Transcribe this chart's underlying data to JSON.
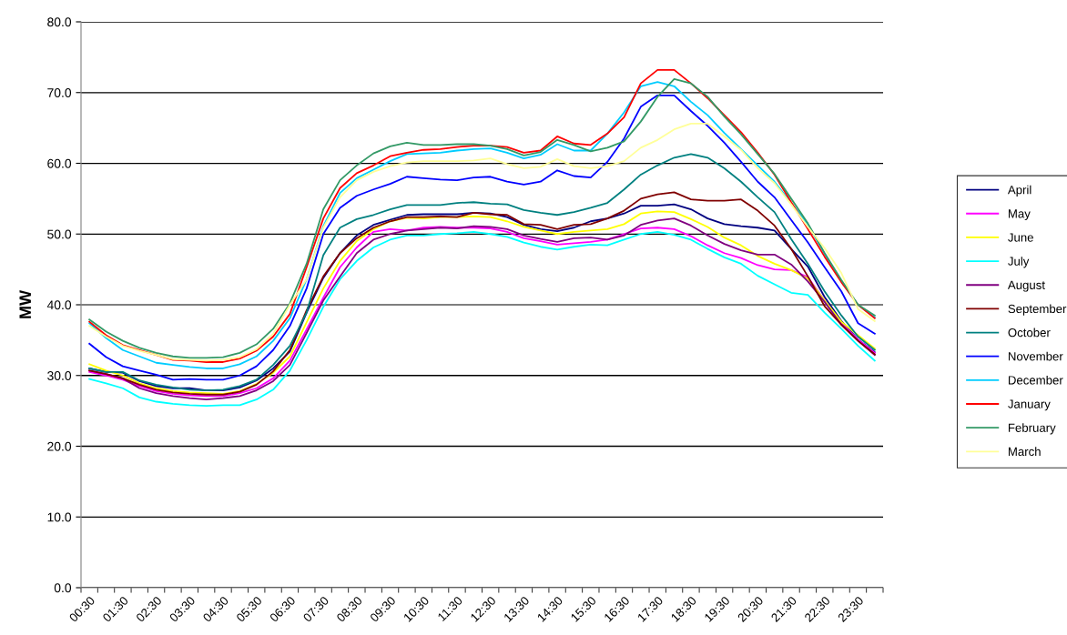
{
  "chart_data": {
    "type": "line",
    "ylabel": "MW",
    "categories": [
      "00:30",
      null,
      "01:30",
      null,
      "02:30",
      null,
      "03:30",
      null,
      "04:30",
      null,
      "05:30",
      null,
      "06:30",
      null,
      "07:30",
      null,
      "08:30",
      null,
      "09:30",
      null,
      "10:30",
      null,
      "11:30",
      null,
      "12:30",
      null,
      "13:30",
      null,
      "14:30",
      null,
      "15:30",
      null,
      "16:30",
      null,
      "17:30",
      null,
      "18:30",
      null,
      "19:30",
      null,
      "20:30",
      null,
      "21:30",
      null,
      "22:30",
      null,
      "23:30",
      null
    ],
    "ylim": [
      0,
      80
    ],
    "yticks": [
      {
        "value": 0,
        "label": "0.0"
      },
      {
        "value": 10,
        "label": "10.0"
      },
      {
        "value": 20,
        "label": "20.0"
      },
      {
        "value": 30,
        "label": "30.0"
      },
      {
        "value": 40,
        "label": "40.0"
      },
      {
        "value": 50,
        "label": "50.0"
      },
      {
        "value": 60,
        "label": "60.0"
      },
      {
        "value": 70,
        "label": "70.0"
      },
      {
        "value": 80,
        "label": "80.0"
      }
    ],
    "grid": "y",
    "legend": "right",
    "marker": "none",
    "line_style": "solid",
    "series": [
      {
        "name": "April",
        "color": "#000080",
        "values": [
          31,
          30.5,
          30.4,
          29.2,
          28.5,
          28.2,
          28.2,
          27.9,
          27.9,
          28.3,
          29.3,
          31,
          33.4,
          38.9,
          43.8,
          47.3,
          49.8,
          51.3,
          52,
          52.7,
          52.8,
          52.8,
          52.8,
          53,
          52.9,
          52.4,
          51.3,
          50.7,
          50.4,
          50.9,
          51.8,
          52.2,
          52.9,
          54,
          54,
          54.2,
          53.5,
          52.2,
          51.4,
          51.1,
          50.9,
          50.5,
          47.9,
          45.4,
          41.1,
          37.7,
          35.1,
          33.3
        ]
      },
      {
        "name": "May",
        "color": "#ff00ff",
        "values": [
          30.5,
          30,
          29.4,
          28.5,
          27.8,
          27.4,
          27.2,
          27.1,
          27.1,
          27.5,
          28.2,
          29.6,
          32.1,
          36.5,
          41,
          45.3,
          48.1,
          50.3,
          50.7,
          50.5,
          50.9,
          51,
          50.9,
          50.9,
          50.8,
          50.3,
          49.4,
          49,
          48.5,
          48.7,
          48.9,
          49.2,
          50,
          50.8,
          50.9,
          50.7,
          49.7,
          48.4,
          47.3,
          46.6,
          45.6,
          45,
          44.9,
          43.9,
          40.6,
          37.4,
          35.1,
          33.2
        ]
      },
      {
        "name": "June",
        "color": "#ffff00",
        "values": [
          31.6,
          30.7,
          30,
          28.9,
          28.2,
          27.8,
          27.6,
          27.5,
          27.4,
          27.8,
          28.8,
          30.4,
          32.7,
          37.5,
          42.3,
          46.2,
          49,
          50.7,
          51.8,
          52.3,
          52.2,
          52.4,
          52.4,
          52.5,
          52.4,
          51.8,
          51,
          50.5,
          50,
          50.3,
          50.5,
          50.7,
          51.4,
          52.9,
          53.2,
          53.1,
          52.1,
          51,
          49.5,
          48.4,
          46.9,
          45.8,
          44.9,
          43.7,
          40.6,
          37.6,
          35.7,
          33.8
        ]
      },
      {
        "name": "July",
        "color": "#00ffff",
        "values": [
          29.5,
          28.9,
          28.2,
          26.9,
          26.3,
          26,
          25.8,
          25.7,
          25.8,
          25.8,
          26.6,
          28,
          30.7,
          35,
          39.7,
          43.6,
          46.2,
          48.1,
          49.2,
          49.8,
          49.8,
          50,
          50.1,
          50.3,
          50,
          49.6,
          48.8,
          48.2,
          47.8,
          48.2,
          48.5,
          48.4,
          49.2,
          50,
          50.3,
          49.9,
          49.2,
          47.9,
          46.7,
          45.8,
          44.1,
          42.9,
          41.7,
          41.4,
          38.9,
          36.6,
          34.2,
          32.1
        ]
      },
      {
        "name": "August",
        "color": "#800080",
        "values": [
          30.7,
          30.2,
          29.6,
          28.2,
          27.5,
          27.1,
          26.8,
          26.6,
          26.8,
          27.1,
          27.9,
          29.2,
          31.5,
          36,
          40.6,
          44,
          47.3,
          49.2,
          50,
          50.5,
          50.7,
          50.9,
          50.8,
          51.1,
          51,
          50.7,
          49.8,
          49.3,
          48.9,
          49.4,
          49.5,
          49.2,
          49.8,
          51.3,
          51.9,
          52.2,
          51.2,
          49.8,
          48.6,
          47.7,
          47.1,
          47.1,
          45.7,
          43.3,
          40.4,
          37.2,
          34.9,
          32.9
        ]
      },
      {
        "name": "September",
        "color": "#800000",
        "values": [
          30.7,
          30.2,
          29.6,
          28.7,
          28,
          27.6,
          27.4,
          27.3,
          27.3,
          27.7,
          28.7,
          30.6,
          33.6,
          39.2,
          44,
          47.3,
          49.4,
          50.9,
          51.8,
          52.4,
          52.4,
          52.5,
          52.4,
          53,
          52.8,
          52.7,
          51.4,
          51.3,
          50.7,
          51.3,
          51.4,
          52.2,
          53.3,
          55,
          55.6,
          55.9,
          54.9,
          54.7,
          54.7,
          54.9,
          53.3,
          51.2,
          47.9,
          44,
          39.8,
          37.2,
          34.9,
          33
        ]
      },
      {
        "name": "October",
        "color": "#008080",
        "values": [
          31,
          30.5,
          30.5,
          29.3,
          28.7,
          28.3,
          28,
          27.9,
          28,
          28.5,
          29.4,
          31.5,
          34.2,
          38.9,
          47,
          50.9,
          52.1,
          52.7,
          53.5,
          54.1,
          54.1,
          54.1,
          54.4,
          54.5,
          54.3,
          54.2,
          53.4,
          53,
          52.7,
          53.1,
          53.7,
          54.4,
          56.3,
          58.4,
          59.7,
          60.8,
          61.3,
          60.8,
          59.3,
          57.4,
          55.2,
          53.1,
          49.3,
          45.8,
          41.9,
          38.5,
          35.5,
          33.6
        ]
      },
      {
        "name": "November",
        "color": "#0000ff",
        "values": [
          34.5,
          32.6,
          31.3,
          30.7,
          30.1,
          29.4,
          29.5,
          29.4,
          29.4,
          30,
          31.3,
          33.6,
          37,
          42.3,
          50,
          53.7,
          55.4,
          56.3,
          57.1,
          58.1,
          57.9,
          57.7,
          57.6,
          58,
          58.1,
          57.4,
          57,
          57.4,
          59,
          58.2,
          58,
          60.2,
          63.5,
          68,
          69.6,
          69.6,
          67.4,
          65.3,
          62.9,
          60.2,
          57.4,
          55.2,
          52,
          48.8,
          45.3,
          41.9,
          37.4,
          35.9
        ]
      },
      {
        "name": "December",
        "color": "#00ccff",
        "values": [
          37.4,
          35.3,
          33.6,
          32.7,
          31.8,
          31.5,
          31.2,
          31,
          31,
          31.6,
          32.7,
          34.9,
          38.1,
          43.6,
          51.1,
          55.8,
          57.9,
          59.1,
          60.3,
          61.3,
          61.4,
          61.5,
          61.8,
          62,
          62.1,
          61.5,
          60.7,
          61.2,
          62.7,
          61.8,
          61.8,
          64.2,
          67.2,
          70.9,
          71.5,
          70.9,
          68.7,
          66.8,
          64.3,
          62,
          59.7,
          57.4,
          54.4,
          51.4,
          47.2,
          43.3,
          40,
          38.2
        ]
      },
      {
        "name": "January",
        "color": "#ff0000",
        "values": [
          37.6,
          35.7,
          34.3,
          33.6,
          32.9,
          32.2,
          32.1,
          31.9,
          31.9,
          32.4,
          33.5,
          35.5,
          38.7,
          45.3,
          52.2,
          56.5,
          58.6,
          59.7,
          61,
          61.5,
          61.9,
          62,
          62.3,
          62.5,
          62.5,
          62.3,
          61.5,
          61.8,
          63.8,
          62.8,
          62.6,
          64.2,
          66.5,
          71.3,
          73.2,
          73.2,
          71.3,
          69.2,
          66.8,
          64.4,
          61.5,
          58.4,
          54.5,
          50.7,
          46.8,
          43.2,
          40,
          38.1
        ]
      },
      {
        "name": "February",
        "color": "#339966",
        "values": [
          37.9,
          36.2,
          34.9,
          33.9,
          33.2,
          32.7,
          32.5,
          32.5,
          32.6,
          33.2,
          34.4,
          36.6,
          40.2,
          45.8,
          53.5,
          57.6,
          59.7,
          61.4,
          62.4,
          62.9,
          62.6,
          62.6,
          62.7,
          62.7,
          62.5,
          62,
          61.1,
          61.6,
          63.3,
          62.6,
          61.7,
          62.2,
          63.1,
          65.9,
          69.4,
          71.9,
          71.3,
          69.4,
          66.6,
          64.1,
          61.3,
          58.5,
          55,
          51.5,
          47.3,
          43.5,
          40,
          38.5
        ]
      },
      {
        "name": "March",
        "color": "#ffff99",
        "values": [
          37,
          35.5,
          34.2,
          33.5,
          32.9,
          32.3,
          32.2,
          32.1,
          32.2,
          32.6,
          33.7,
          35.9,
          40,
          43.6,
          50.9,
          55.2,
          57.6,
          58.8,
          59.6,
          60.1,
          60.3,
          60.3,
          60.3,
          60.4,
          60.7,
          59.9,
          59.3,
          59.5,
          60.6,
          59.6,
          59.3,
          59.6,
          60.3,
          62.2,
          63.3,
          64.8,
          65.6,
          65.6,
          63.8,
          61.9,
          59.3,
          57.2,
          54.2,
          51,
          48,
          44.5,
          39.4,
          37.7
        ]
      }
    ]
  }
}
